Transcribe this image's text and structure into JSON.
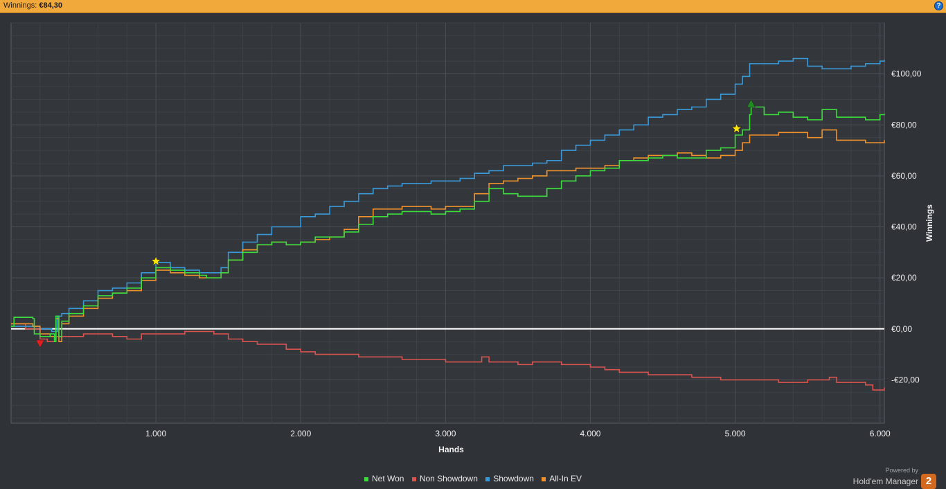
{
  "header": {
    "label": "Winnings:",
    "value": "€84,30",
    "help_icon": "help-icon"
  },
  "brand": {
    "powered_by": "Powered by",
    "name": "Hold'em Manager",
    "logo_text": "2"
  },
  "colors": {
    "background": "#2f3338",
    "grid": "#4a4f55",
    "zero_line": "#ffffff",
    "net_won": "#3ddc3d",
    "non_showdown": "#d9534f",
    "showdown": "#3a9ad9",
    "all_in_ev": "#f0922b"
  },
  "chart_data": {
    "type": "line",
    "title": "",
    "xlabel": "Hands",
    "ylabel": "Winnings",
    "xlim": [
      0,
      6030
    ],
    "ylim": [
      -37,
      120
    ],
    "x_ticks": [
      1000,
      2000,
      3000,
      4000,
      5000,
      6000
    ],
    "x_tick_labels": [
      "1.000",
      "2.000",
      "3.000",
      "4.000",
      "5.000",
      "6.000"
    ],
    "y_ticks": [
      -20,
      0,
      20,
      40,
      60,
      80,
      100
    ],
    "y_tick_labels": [
      "-€20,00",
      "€0,00",
      "€20,00",
      "€40,00",
      "€60,00",
      "€80,00",
      "€100,00"
    ],
    "grid": true,
    "legend_position": "bottom",
    "series": [
      {
        "name": "Net Won",
        "color": "#3ddc3d",
        "points": [
          [
            0,
            1
          ],
          [
            20,
            4.5
          ],
          [
            150,
            4
          ],
          [
            160,
            -2
          ],
          [
            200,
            -3
          ],
          [
            270,
            -2
          ],
          [
            300,
            -5
          ],
          [
            310,
            5
          ],
          [
            330,
            -3
          ],
          [
            350,
            3
          ],
          [
            400,
            6
          ],
          [
            500,
            9
          ],
          [
            600,
            13
          ],
          [
            700,
            14
          ],
          [
            800,
            16
          ],
          [
            900,
            20
          ],
          [
            1000,
            24
          ],
          [
            1100,
            23
          ],
          [
            1200,
            22
          ],
          [
            1250,
            22
          ],
          [
            1300,
            21
          ],
          [
            1350,
            20
          ],
          [
            1400,
            20
          ],
          [
            1450,
            22
          ],
          [
            1500,
            27
          ],
          [
            1600,
            30
          ],
          [
            1700,
            33
          ],
          [
            1800,
            34
          ],
          [
            1900,
            33
          ],
          [
            2000,
            34
          ],
          [
            2100,
            36
          ],
          [
            2200,
            36
          ],
          [
            2300,
            38
          ],
          [
            2400,
            41
          ],
          [
            2500,
            44
          ],
          [
            2600,
            45
          ],
          [
            2700,
            46
          ],
          [
            2800,
            46
          ],
          [
            2900,
            45
          ],
          [
            3000,
            46
          ],
          [
            3100,
            47
          ],
          [
            3200,
            50
          ],
          [
            3300,
            55
          ],
          [
            3400,
            53
          ],
          [
            3500,
            52
          ],
          [
            3600,
            52
          ],
          [
            3700,
            55
          ],
          [
            3800,
            58
          ],
          [
            3900,
            60
          ],
          [
            4000,
            62
          ],
          [
            4100,
            63
          ],
          [
            4200,
            66
          ],
          [
            4300,
            66
          ],
          [
            4400,
            67
          ],
          [
            4500,
            68
          ],
          [
            4600,
            67
          ],
          [
            4700,
            67
          ],
          [
            4800,
            70
          ],
          [
            4900,
            71
          ],
          [
            5000,
            76
          ],
          [
            5050,
            78
          ],
          [
            5100,
            84
          ],
          [
            5110,
            87
          ],
          [
            5200,
            84
          ],
          [
            5300,
            85
          ],
          [
            5400,
            83
          ],
          [
            5500,
            82
          ],
          [
            5600,
            86
          ],
          [
            5700,
            83
          ],
          [
            5800,
            83
          ],
          [
            5900,
            82
          ],
          [
            6000,
            84
          ],
          [
            6030,
            84.3
          ]
        ]
      },
      {
        "name": "Non Showdown",
        "color": "#d9534f",
        "points": [
          [
            0,
            2
          ],
          [
            100,
            0
          ],
          [
            200,
            -4
          ],
          [
            250,
            -5
          ],
          [
            300,
            -3
          ],
          [
            400,
            -3
          ],
          [
            500,
            -2
          ],
          [
            600,
            -2
          ],
          [
            700,
            -3
          ],
          [
            800,
            -4
          ],
          [
            900,
            -2
          ],
          [
            1000,
            -2
          ],
          [
            1100,
            -2
          ],
          [
            1200,
            -1
          ],
          [
            1300,
            -1
          ],
          [
            1400,
            -2
          ],
          [
            1500,
            -4
          ],
          [
            1600,
            -5
          ],
          [
            1700,
            -6
          ],
          [
            1800,
            -6
          ],
          [
            1900,
            -8
          ],
          [
            2000,
            -9
          ],
          [
            2100,
            -10
          ],
          [
            2200,
            -10
          ],
          [
            2300,
            -10
          ],
          [
            2400,
            -11
          ],
          [
            2500,
            -11
          ],
          [
            2600,
            -11
          ],
          [
            2700,
            -12
          ],
          [
            2800,
            -12
          ],
          [
            2900,
            -12
          ],
          [
            3000,
            -13
          ],
          [
            3100,
            -13
          ],
          [
            3200,
            -13
          ],
          [
            3250,
            -11
          ],
          [
            3300,
            -13
          ],
          [
            3400,
            -13
          ],
          [
            3500,
            -14
          ],
          [
            3600,
            -13
          ],
          [
            3700,
            -13
          ],
          [
            3800,
            -14
          ],
          [
            3900,
            -14
          ],
          [
            4000,
            -15
          ],
          [
            4100,
            -16
          ],
          [
            4200,
            -17
          ],
          [
            4300,
            -17
          ],
          [
            4400,
            -18
          ],
          [
            4500,
            -18
          ],
          [
            4600,
            -18
          ],
          [
            4700,
            -19
          ],
          [
            4800,
            -19
          ],
          [
            4900,
            -20
          ],
          [
            5000,
            -20
          ],
          [
            5100,
            -20
          ],
          [
            5200,
            -20
          ],
          [
            5300,
            -21
          ],
          [
            5400,
            -21
          ],
          [
            5500,
            -20
          ],
          [
            5600,
            -20
          ],
          [
            5650,
            -19
          ],
          [
            5700,
            -21
          ],
          [
            5800,
            -21
          ],
          [
            5900,
            -22
          ],
          [
            5950,
            -24
          ],
          [
            6000,
            -24
          ],
          [
            6030,
            -23
          ]
        ]
      },
      {
        "name": "Showdown",
        "color": "#3a9ad9",
        "points": [
          [
            0,
            1
          ],
          [
            200,
            0
          ],
          [
            280,
            -1
          ],
          [
            320,
            5
          ],
          [
            350,
            6
          ],
          [
            400,
            8
          ],
          [
            500,
            11
          ],
          [
            600,
            15
          ],
          [
            700,
            16
          ],
          [
            800,
            18
          ],
          [
            900,
            22
          ],
          [
            1000,
            26
          ],
          [
            1100,
            24
          ],
          [
            1200,
            23
          ],
          [
            1300,
            22
          ],
          [
            1400,
            22
          ],
          [
            1450,
            24
          ],
          [
            1500,
            30
          ],
          [
            1600,
            34
          ],
          [
            1700,
            37
          ],
          [
            1800,
            40
          ],
          [
            1900,
            40
          ],
          [
            2000,
            44
          ],
          [
            2100,
            45
          ],
          [
            2200,
            48
          ],
          [
            2300,
            50
          ],
          [
            2400,
            53
          ],
          [
            2500,
            55
          ],
          [
            2600,
            56
          ],
          [
            2700,
            57
          ],
          [
            2800,
            57
          ],
          [
            2900,
            58
          ],
          [
            3000,
            58
          ],
          [
            3100,
            59
          ],
          [
            3200,
            61
          ],
          [
            3300,
            62
          ],
          [
            3400,
            64
          ],
          [
            3500,
            64
          ],
          [
            3600,
            65
          ],
          [
            3700,
            66
          ],
          [
            3800,
            70
          ],
          [
            3900,
            72
          ],
          [
            4000,
            74
          ],
          [
            4100,
            76
          ],
          [
            4200,
            78
          ],
          [
            4300,
            80
          ],
          [
            4400,
            83
          ],
          [
            4500,
            84
          ],
          [
            4600,
            86
          ],
          [
            4700,
            87
          ],
          [
            4800,
            90
          ],
          [
            4900,
            92
          ],
          [
            5000,
            96
          ],
          [
            5050,
            99
          ],
          [
            5100,
            104
          ],
          [
            5200,
            104
          ],
          [
            5300,
            105
          ],
          [
            5400,
            106
          ],
          [
            5500,
            103
          ],
          [
            5600,
            102
          ],
          [
            5700,
            102
          ],
          [
            5800,
            103
          ],
          [
            5900,
            104
          ],
          [
            6000,
            105
          ],
          [
            6030,
            105.5
          ]
        ]
      },
      {
        "name": "All-In EV",
        "color": "#f0922b",
        "points": [
          [
            0,
            2
          ],
          [
            150,
            1
          ],
          [
            200,
            -2
          ],
          [
            270,
            -3
          ],
          [
            300,
            -4
          ],
          [
            310,
            4
          ],
          [
            330,
            -5
          ],
          [
            350,
            2
          ],
          [
            400,
            5
          ],
          [
            500,
            8
          ],
          [
            600,
            12
          ],
          [
            700,
            14
          ],
          [
            800,
            15
          ],
          [
            900,
            19
          ],
          [
            1000,
            23
          ],
          [
            1100,
            22
          ],
          [
            1200,
            21
          ],
          [
            1300,
            20
          ],
          [
            1400,
            20
          ],
          [
            1450,
            22
          ],
          [
            1500,
            27
          ],
          [
            1600,
            31
          ],
          [
            1700,
            33
          ],
          [
            1800,
            34
          ],
          [
            1900,
            33
          ],
          [
            2000,
            34
          ],
          [
            2100,
            35
          ],
          [
            2200,
            36
          ],
          [
            2300,
            39
          ],
          [
            2400,
            44
          ],
          [
            2500,
            47
          ],
          [
            2600,
            47
          ],
          [
            2700,
            48
          ],
          [
            2800,
            48
          ],
          [
            2900,
            47
          ],
          [
            3000,
            48
          ],
          [
            3100,
            48
          ],
          [
            3200,
            53
          ],
          [
            3300,
            57
          ],
          [
            3400,
            58
          ],
          [
            3500,
            59
          ],
          [
            3600,
            60
          ],
          [
            3700,
            62
          ],
          [
            3800,
            62
          ],
          [
            3900,
            63
          ],
          [
            4000,
            63
          ],
          [
            4100,
            64
          ],
          [
            4200,
            66
          ],
          [
            4300,
            67
          ],
          [
            4400,
            68
          ],
          [
            4500,
            68
          ],
          [
            4600,
            69
          ],
          [
            4700,
            68
          ],
          [
            4800,
            67
          ],
          [
            4900,
            68
          ],
          [
            5000,
            70
          ],
          [
            5050,
            73
          ],
          [
            5100,
            76
          ],
          [
            5200,
            76
          ],
          [
            5300,
            77
          ],
          [
            5400,
            77
          ],
          [
            5500,
            75
          ],
          [
            5600,
            78
          ],
          [
            5700,
            74
          ],
          [
            5800,
            74
          ],
          [
            5900,
            73
          ],
          [
            6000,
            73
          ],
          [
            6030,
            74
          ]
        ]
      }
    ],
    "markers": [
      {
        "name": "max-marker",
        "shape": "triangle-up",
        "color": "#1e8c1e",
        "x": 5110,
        "y": 88
      },
      {
        "name": "min-marker",
        "shape": "triangle-down",
        "color": "#e02020",
        "x": 200,
        "y": -5.5
      },
      {
        "name": "star-marker-1",
        "shape": "star",
        "color": "#ffe600",
        "x": 1000,
        "y": 26.5
      },
      {
        "name": "star-marker-2",
        "shape": "star",
        "color": "#ffe600",
        "x": 5010,
        "y": 78.5
      }
    ]
  }
}
